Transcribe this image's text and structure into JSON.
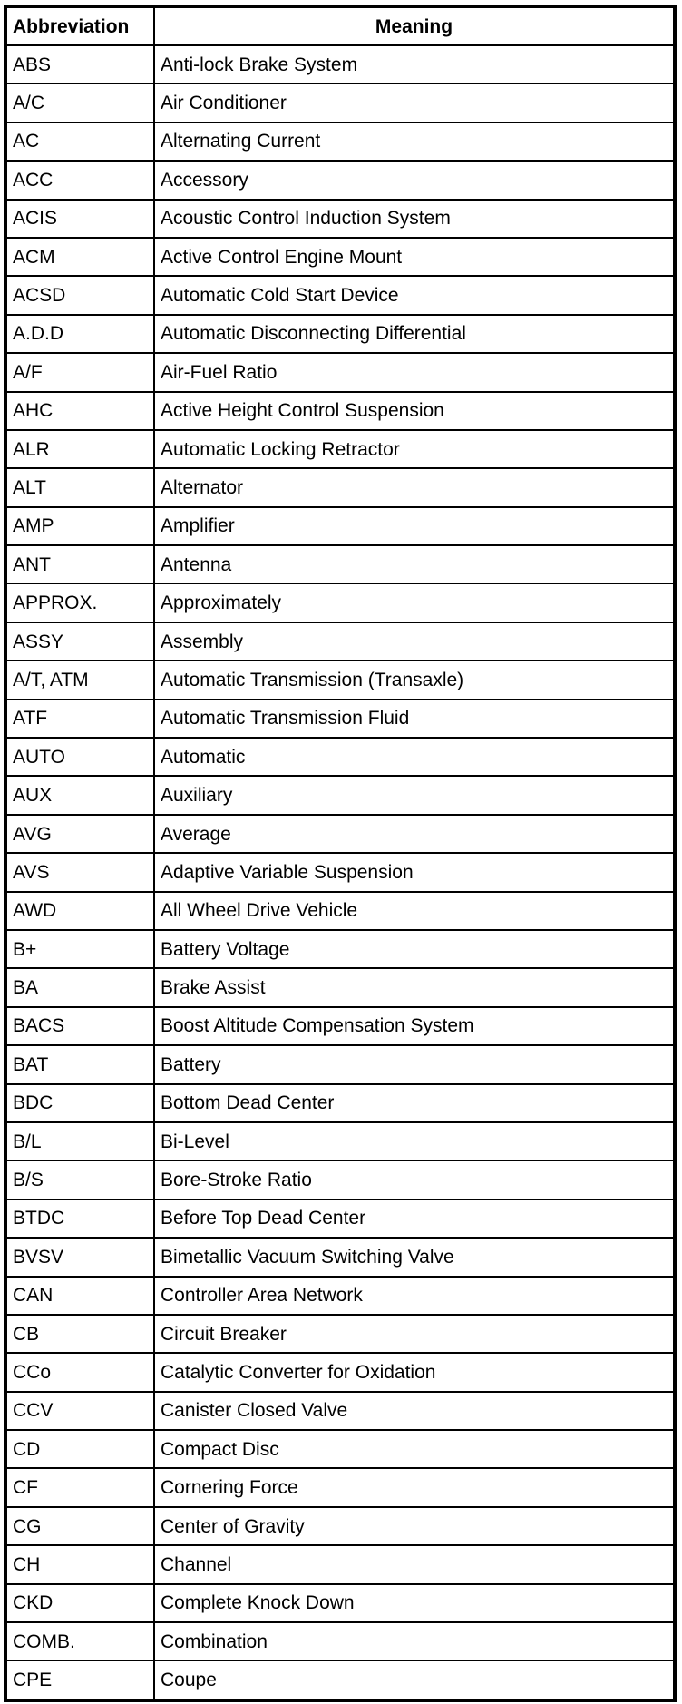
{
  "headers": {
    "abbreviation": "Abbreviation",
    "meaning": "Meaning"
  },
  "rows": [
    [
      "ABS",
      "Anti-lock Brake System"
    ],
    [
      "A/C",
      "Air Conditioner"
    ],
    [
      "AC",
      "Alternating Current"
    ],
    [
      "ACC",
      "Accessory"
    ],
    [
      "ACIS",
      "Acoustic Control Induction System"
    ],
    [
      "ACM",
      "Active Control Engine Mount"
    ],
    [
      "ACSD",
      "Automatic Cold Start Device"
    ],
    [
      "A.D.D",
      "Automatic Disconnecting Differential"
    ],
    [
      "A/F",
      "Air-Fuel Ratio"
    ],
    [
      "AHC",
      "Active Height Control Suspension"
    ],
    [
      "ALR",
      "Automatic Locking Retractor"
    ],
    [
      "ALT",
      "Alternator"
    ],
    [
      "AMP",
      "Amplifier"
    ],
    [
      "ANT",
      "Antenna"
    ],
    [
      "APPROX.",
      "Approximately"
    ],
    [
      "ASSY",
      "Assembly"
    ],
    [
      "A/T, ATM",
      "Automatic Transmission (Transaxle)"
    ],
    [
      "ATF",
      "Automatic Transmission Fluid"
    ],
    [
      "AUTO",
      "Automatic"
    ],
    [
      "AUX",
      "Auxiliary"
    ],
    [
      "AVG",
      "Average"
    ],
    [
      "AVS",
      "Adaptive Variable Suspension"
    ],
    [
      "AWD",
      "All Wheel Drive Vehicle"
    ],
    [
      "B+",
      "Battery Voltage"
    ],
    [
      "BA",
      "Brake Assist"
    ],
    [
      "BACS",
      "Boost Altitude Compensation System"
    ],
    [
      "BAT",
      "Battery"
    ],
    [
      "BDC",
      "Bottom Dead Center"
    ],
    [
      "B/L",
      "Bi-Level"
    ],
    [
      "B/S",
      "Bore-Stroke Ratio"
    ],
    [
      "BTDC",
      "Before Top Dead Center"
    ],
    [
      "BVSV",
      "Bimetallic Vacuum Switching Valve"
    ],
    [
      "CAN",
      "Controller Area Network"
    ],
    [
      "CB",
      "Circuit Breaker"
    ],
    [
      "CCo",
      "Catalytic Converter for Oxidation"
    ],
    [
      "CCV",
      "Canister Closed Valve"
    ],
    [
      "CD",
      "Compact Disc"
    ],
    [
      "CF",
      "Cornering Force"
    ],
    [
      "CG",
      "Center of Gravity"
    ],
    [
      "CH",
      "Channel"
    ],
    [
      "CKD",
      "Complete Knock Down"
    ],
    [
      "COMB.",
      "Combination"
    ],
    [
      "CPE",
      "Coupe"
    ]
  ]
}
